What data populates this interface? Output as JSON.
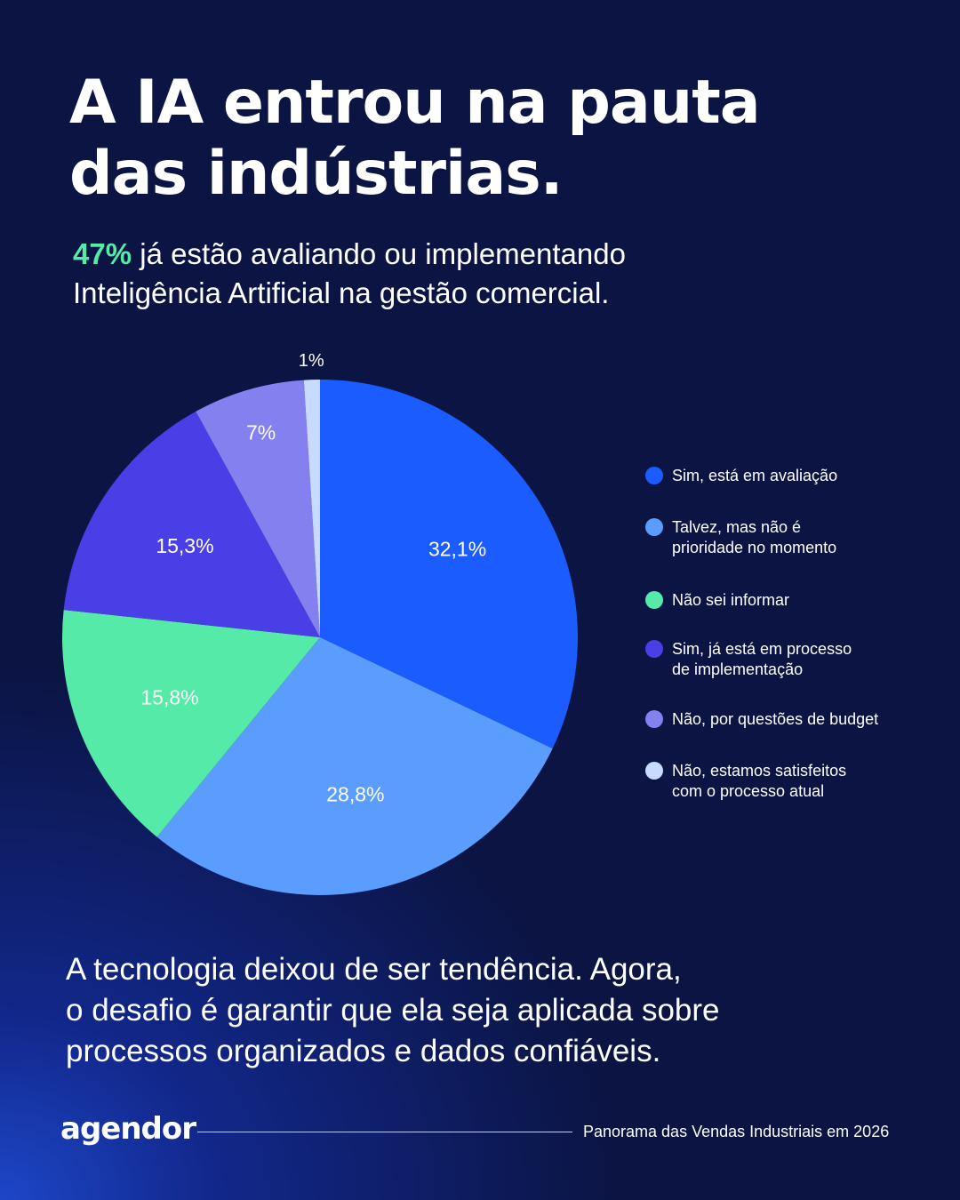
{
  "chart_data": {
    "type": "pie",
    "title": [
      "A IA entrou na pauta",
      "das indústrias."
    ],
    "subtitle_highlight": "47%",
    "subtitle": [
      "já estão avaliando ou implementando",
      "Inteligência Artificial na gestão comercial."
    ],
    "categories": [
      "Sim, está em avaliação",
      "Talvez, mas não é\nprioridade no momento",
      "Não sei informar",
      "Sim, já está em processo\nde implementação",
      "Não, por questões de budget",
      "Não, estamos satisfeitos\ncom o processo atual"
    ],
    "values": [
      32.1,
      28.8,
      15.8,
      15.3,
      7,
      1
    ],
    "value_labels": [
      "32,1%",
      "28,8%",
      "15,8%",
      "15,3%",
      "7%",
      "1%"
    ],
    "colors": [
      "#1a5cff",
      "#5b9dff",
      "#56eaa8",
      "#4a3ee6",
      "#8580f0",
      "#c8daff"
    ],
    "body": [
      "A tecnologia deixou de ser tendência. Agora,",
      "o desafio é garantir que ela seja aplicada sobre",
      "processos organizados e dados confiáveis."
    ],
    "footer_logo": "agendor",
    "footer_note": "Panorama das Vendas Industriais em 2026"
  }
}
